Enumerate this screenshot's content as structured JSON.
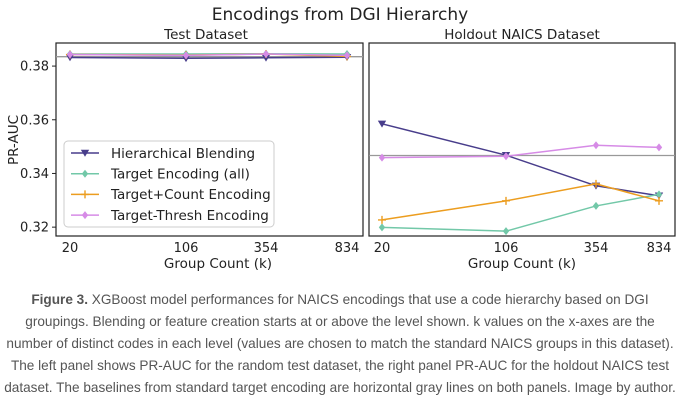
{
  "chart_data": {
    "type": "line",
    "title": "Encodings from DGI Hierarchy",
    "ylabel": "PR-AUC",
    "ylim": [
      0.3167,
      0.3886
    ],
    "yticks": [
      0.32,
      0.34,
      0.36,
      0.38
    ],
    "ytick_labels": [
      "0.32",
      "0.34",
      "0.36",
      "0.38"
    ],
    "legend_position": "lower-left (left panel)",
    "colors": {
      "hierarchical_blending": "#483d8b",
      "target_encoding_all": "#72c8a8",
      "target_count_encoding": "#ec9d1f",
      "target_thresh_encoding": "#d68be6",
      "baseline": "#999999"
    },
    "legend": [
      {
        "label": "Hierarchical Blending",
        "color": "#483d8b",
        "marker": "triangle-down"
      },
      {
        "label": "Target Encoding (all)",
        "color": "#72c8a8",
        "marker": "diamond"
      },
      {
        "label": "Target+Count Encoding",
        "color": "#ec9d1f",
        "marker": "plus"
      },
      {
        "label": "Target-Thresh Encoding",
        "color": "#d68be6",
        "marker": "diamond"
      }
    ],
    "panels": [
      {
        "title": "Test Dataset",
        "xlabel": "Group Count (k)",
        "x_labels": [
          "20",
          "106",
          "354",
          "834"
        ],
        "baseline": 0.3835,
        "series": [
          {
            "name": "Hierarchical Blending",
            "values": [
              0.3832,
              0.3829,
              0.3831,
              0.3833
            ]
          },
          {
            "name": "Target Encoding (all)",
            "values": [
              0.3845,
              0.3845,
              0.3846,
              0.3845
            ]
          },
          {
            "name": "Target+Count Encoding",
            "values": [
              0.3843,
              0.3841,
              0.3845,
              0.3836
            ]
          },
          {
            "name": "Target-Thresh Encoding",
            "values": [
              0.3843,
              0.384,
              0.3845,
              0.384
            ]
          }
        ]
      },
      {
        "title": "Holdout NAICS Dataset",
        "xlabel": "Group Count (k)",
        "x_labels": [
          "20",
          "106",
          "354",
          "834"
        ],
        "baseline": 0.3467,
        "series": [
          {
            "name": "Hierarchical Blending",
            "values": [
              0.3585,
              0.3468,
              0.3354,
              0.3317
            ]
          },
          {
            "name": "Target Encoding (all)",
            "values": [
              0.3199,
              0.3185,
              0.3279,
              0.3322
            ]
          },
          {
            "name": "Target+Count Encoding",
            "values": [
              0.3227,
              0.3298,
              0.3361,
              0.3298
            ]
          },
          {
            "name": "Target-Thresh Encoding",
            "values": [
              0.3459,
              0.3464,
              0.3505,
              0.3497
            ]
          }
        ]
      }
    ]
  },
  "caption": {
    "label": "Figure 3.",
    "text": " XGBoost model performances for NAICS encodings that use a code hierarchy based on DGI groupings. Blending or feature creation starts at or above the level shown. k values on the x-axes are the number of distinct codes in each level (values are chosen to match the standard NAICS groups in this dataset). The left panel shows PR-AUC for the random test dataset, the right panel PR-AUC for the holdout NAICS test dataset. The baselines from standard target encoding are horizontal gray lines on both panels. Image by author."
  }
}
